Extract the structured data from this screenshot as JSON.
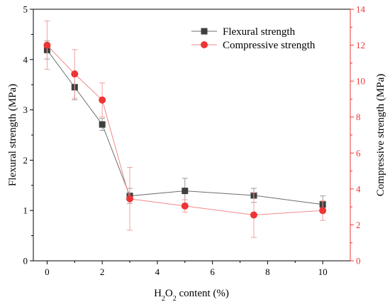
{
  "chart_data": {
    "type": "line",
    "x": [
      0,
      1,
      2,
      3,
      5,
      7.5,
      10
    ],
    "xlabel_parts": [
      "H",
      "2",
      "O",
      "2",
      " content (%)"
    ],
    "xlim": [
      -0.5,
      11
    ],
    "xticks": [
      0,
      2,
      4,
      6,
      8,
      10
    ],
    "ylabel": "Flexural strength (MPa)",
    "ylim": [
      0,
      5
    ],
    "yticks": [
      0,
      1,
      2,
      3,
      4,
      5
    ],
    "y2label": "Compressive strength (MPa)",
    "y2lim": [
      0,
      14
    ],
    "y2ticks": [
      0,
      2,
      4,
      6,
      8,
      10,
      12,
      14
    ],
    "legend_position": "top-right",
    "grid": false,
    "colors": {
      "flexural": "#3f3f3f",
      "compressive": "#ee3535",
      "right_axis": "#ee3535",
      "left_axis": "#000000"
    },
    "series": [
      {
        "name": "Flexural strength",
        "axis": "left",
        "marker": "square",
        "values": [
          4.19,
          3.45,
          2.71,
          1.29,
          1.39,
          1.3,
          1.12
        ],
        "errors": [
          0.18,
          0.25,
          0.12,
          0.15,
          0.25,
          0.14,
          0.17
        ]
      },
      {
        "name": "Compressive strength",
        "axis": "right",
        "marker": "circle",
        "values": [
          12.0,
          10.4,
          8.95,
          3.45,
          3.05,
          2.55,
          2.8
        ],
        "errors": [
          1.35,
          1.35,
          0.95,
          1.75,
          0.35,
          1.25,
          0.55
        ]
      }
    ]
  }
}
